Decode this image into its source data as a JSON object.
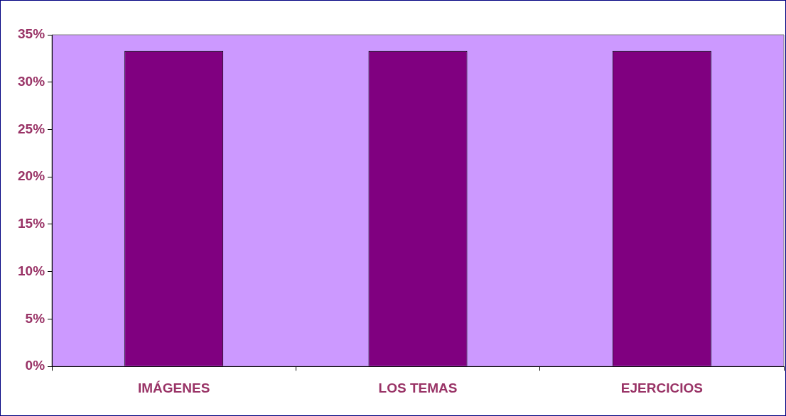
{
  "chart_data": {
    "type": "bar",
    "categories": [
      "IMÁGENES",
      "LOS TEMAS",
      "EJERCICIOS"
    ],
    "values": [
      33.3,
      33.3,
      33.3
    ],
    "color": "#800080",
    "ylim": [
      0,
      35
    ],
    "yticks": [
      {
        "value": 0,
        "label": "0%"
      },
      {
        "value": 5,
        "label": "5%"
      },
      {
        "value": 10,
        "label": "10%"
      },
      {
        "value": 15,
        "label": "15%"
      },
      {
        "value": 20,
        "label": "20%"
      },
      {
        "value": 25,
        "label": "25%"
      },
      {
        "value": 30,
        "label": "30%"
      },
      {
        "value": 35,
        "label": "35%"
      }
    ],
    "grid": false,
    "legend": false
  }
}
